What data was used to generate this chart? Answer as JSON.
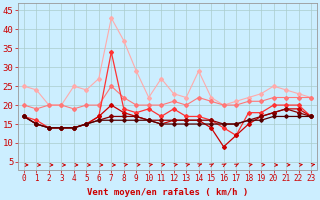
{
  "background_color": "#cceeff",
  "grid_color": "#aacccc",
  "xlabel": "Vent moyen/en rafales ( km/h )",
  "xlabel_color": "#cc0000",
  "xlabel_fontsize": 6.5,
  "xtick_color": "#cc0000",
  "ytick_color": "#cc0000",
  "ytick_fontsize": 6.5,
  "xtick_fontsize": 5.5,
  "xlim": [
    -0.5,
    23.5
  ],
  "ylim": [
    3,
    47
  ],
  "yticks": [
    5,
    10,
    15,
    20,
    25,
    30,
    35,
    40,
    45
  ],
  "xticks": [
    0,
    1,
    2,
    3,
    4,
    5,
    6,
    7,
    8,
    9,
    10,
    11,
    12,
    13,
    14,
    15,
    16,
    17,
    18,
    19,
    20,
    21,
    22,
    23
  ],
  "series": [
    {
      "color": "#ffaaaa",
      "linewidth": 0.8,
      "markersize": 2.0,
      "marker": "D",
      "y": [
        25,
        24,
        20,
        20,
        25,
        24,
        27,
        43,
        37,
        29,
        22,
        27,
        23,
        22,
        29,
        22,
        20,
        21,
        22,
        23,
        25,
        24,
        23,
        22
      ]
    },
    {
      "color": "#ff7777",
      "linewidth": 0.8,
      "markersize": 2.0,
      "marker": "D",
      "y": [
        20,
        19,
        20,
        20,
        19,
        20,
        20,
        25,
        22,
        20,
        20,
        20,
        21,
        20,
        22,
        21,
        20,
        20,
        21,
        21,
        22,
        22,
        22,
        22
      ]
    },
    {
      "color": "#ff3333",
      "linewidth": 0.9,
      "markersize": 2.0,
      "marker": "D",
      "y": [
        17,
        16,
        14,
        14,
        14,
        15,
        17,
        34,
        19,
        18,
        19,
        17,
        19,
        17,
        17,
        16,
        14,
        12,
        18,
        18,
        20,
        20,
        20,
        17
      ]
    },
    {
      "color": "#cc0000",
      "linewidth": 0.9,
      "markersize": 2.0,
      "marker": "D",
      "y": [
        17,
        15,
        14,
        14,
        14,
        15,
        17,
        20,
        18,
        17,
        16,
        15,
        16,
        16,
        16,
        14,
        9,
        12,
        15,
        17,
        18,
        19,
        19,
        17
      ]
    },
    {
      "color": "#880000",
      "linewidth": 0.9,
      "markersize": 2.0,
      "marker": "D",
      "y": [
        17,
        15,
        14,
        14,
        14,
        15,
        16,
        17,
        17,
        17,
        16,
        16,
        16,
        16,
        16,
        16,
        15,
        15,
        16,
        17,
        18,
        19,
        18,
        17
      ]
    },
    {
      "color": "#550000",
      "linewidth": 0.9,
      "markersize": 1.8,
      "marker": "D",
      "y": [
        17,
        15,
        14,
        14,
        14,
        15,
        16,
        16,
        16,
        16,
        16,
        15,
        15,
        15,
        15,
        15,
        15,
        15,
        16,
        16,
        17,
        17,
        17,
        17
      ]
    }
  ],
  "arrow_angles_deg": [
    0,
    0,
    0,
    0,
    0,
    0,
    0,
    0,
    -30,
    -20,
    -30,
    -30,
    -30,
    -40,
    -50,
    -60,
    -60,
    -60,
    -30,
    -20,
    0,
    -10,
    -20,
    -30
  ]
}
